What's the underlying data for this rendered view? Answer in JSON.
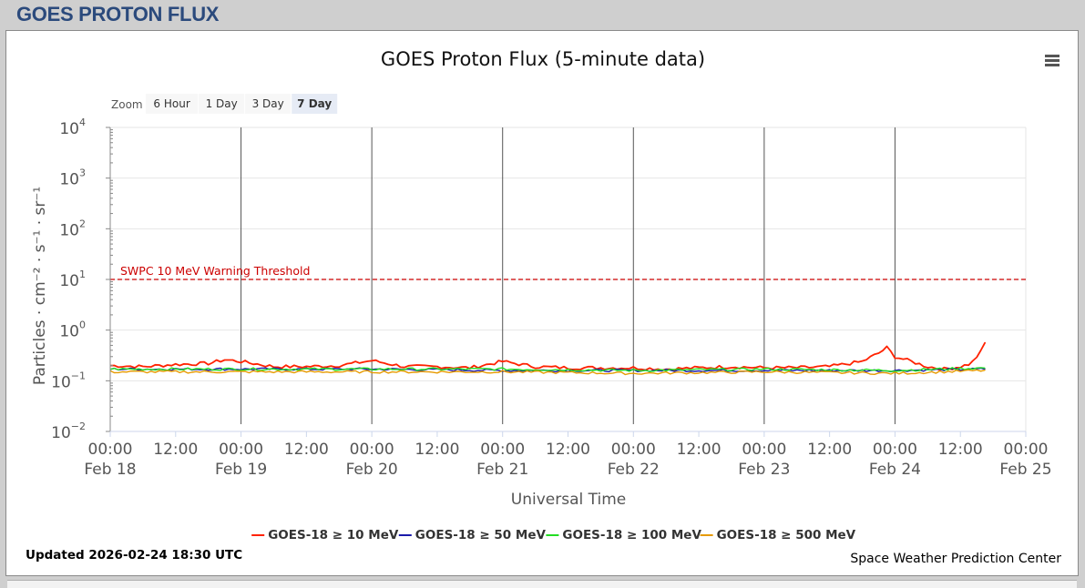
{
  "header": {
    "title": "GOES PROTON FLUX"
  },
  "zoom": {
    "label": "Zoom",
    "buttons": [
      {
        "label": "6 Hour",
        "active": false
      },
      {
        "label": "1 Day",
        "active": false
      },
      {
        "label": "3 Day",
        "active": false
      },
      {
        "label": "7 Day",
        "active": true
      }
    ]
  },
  "footer": {
    "updated": "Updated 2026-02-24 18:30 UTC",
    "credit": "Space Weather Prediction Center"
  },
  "chart_data": {
    "type": "line",
    "title": "GOES Proton Flux (5-minute data)",
    "xlabel": "Universal Time",
    "ylabel": "Particles · cm⁻² · s⁻¹ · sr⁻¹",
    "yscale": "log",
    "ylim": [
      0.01,
      10000
    ],
    "yticks": [
      {
        "value": 0.01,
        "base": "10",
        "exp": "−2"
      },
      {
        "value": 0.1,
        "base": "10",
        "exp": "−1"
      },
      {
        "value": 1,
        "base": "10",
        "exp": "0"
      },
      {
        "value": 10,
        "base": "10",
        "exp": "1"
      },
      {
        "value": 100,
        "base": "10",
        "exp": "2"
      },
      {
        "value": 1000,
        "base": "10",
        "exp": "3"
      },
      {
        "value": 10000,
        "base": "10",
        "exp": "4"
      }
    ],
    "xlim": [
      "2026-02-18 00:00",
      "2026-02-25 00:00"
    ],
    "xticks": [
      {
        "time": "2026-02-18 00:00",
        "line1": "00:00",
        "line2": "Feb 18"
      },
      {
        "time": "2026-02-18 12:00",
        "line1": "12:00",
        "line2": ""
      },
      {
        "time": "2026-02-19 00:00",
        "line1": "00:00",
        "line2": "Feb 19"
      },
      {
        "time": "2026-02-19 12:00",
        "line1": "12:00",
        "line2": ""
      },
      {
        "time": "2026-02-20 00:00",
        "line1": "00:00",
        "line2": "Feb 20"
      },
      {
        "time": "2026-02-20 12:00",
        "line1": "12:00",
        "line2": ""
      },
      {
        "time": "2026-02-21 00:00",
        "line1": "00:00",
        "line2": "Feb 21"
      },
      {
        "time": "2026-02-21 12:00",
        "line1": "12:00",
        "line2": ""
      },
      {
        "time": "2026-02-22 00:00",
        "line1": "00:00",
        "line2": "Feb 22"
      },
      {
        "time": "2026-02-22 12:00",
        "line1": "12:00",
        "line2": ""
      },
      {
        "time": "2026-02-23 00:00",
        "line1": "00:00",
        "line2": "Feb 23"
      },
      {
        "time": "2026-02-23 12:00",
        "line1": "12:00",
        "line2": ""
      },
      {
        "time": "2026-02-24 00:00",
        "line1": "00:00",
        "line2": "Feb 24"
      },
      {
        "time": "2026-02-24 12:00",
        "line1": "12:00",
        "line2": ""
      },
      {
        "time": "2026-02-25 00:00",
        "line1": "00:00",
        "line2": "Feb 25"
      }
    ],
    "day_boundaries": [
      "2026-02-19 00:00",
      "2026-02-20 00:00",
      "2026-02-21 00:00",
      "2026-02-22 00:00",
      "2026-02-23 00:00",
      "2026-02-24 00:00"
    ],
    "threshold": {
      "label": "SWPC 10 MeV Warning Threshold",
      "value": 10,
      "color": "#cc0000"
    },
    "legend_position": "bottom-center",
    "series": [
      {
        "name": "GOES-18 ≥ 10 MeV",
        "color": "#ff2200",
        "points": [
          [
            "2026-02-18 00:00",
            0.2
          ],
          [
            "2026-02-18 06:00",
            0.19
          ],
          [
            "2026-02-18 12:00",
            0.21
          ],
          [
            "2026-02-18 18:00",
            0.22
          ],
          [
            "2026-02-18 21:00",
            0.26
          ],
          [
            "2026-02-19 00:00",
            0.24
          ],
          [
            "2026-02-19 06:00",
            0.19
          ],
          [
            "2026-02-19 12:00",
            0.19
          ],
          [
            "2026-02-19 18:00",
            0.2
          ],
          [
            "2026-02-20 00:00",
            0.25
          ],
          [
            "2026-02-20 06:00",
            0.19
          ],
          [
            "2026-02-20 12:00",
            0.19
          ],
          [
            "2026-02-20 18:00",
            0.18
          ],
          [
            "2026-02-21 00:00",
            0.24
          ],
          [
            "2026-02-21 06:00",
            0.19
          ],
          [
            "2026-02-21 12:00",
            0.18
          ],
          [
            "2026-02-21 18:00",
            0.18
          ],
          [
            "2026-02-22 00:00",
            0.18
          ],
          [
            "2026-02-22 06:00",
            0.17
          ],
          [
            "2026-02-22 12:00",
            0.18
          ],
          [
            "2026-02-22 18:00",
            0.19
          ],
          [
            "2026-02-23 00:00",
            0.18
          ],
          [
            "2026-02-23 06:00",
            0.18
          ],
          [
            "2026-02-23 12:00",
            0.19
          ],
          [
            "2026-02-23 18:00",
            0.24
          ],
          [
            "2026-02-23 21:00",
            0.35
          ],
          [
            "2026-02-23 22:30",
            0.45
          ],
          [
            "2026-02-24 00:00",
            0.3
          ],
          [
            "2026-02-24 03:00",
            0.24
          ],
          [
            "2026-02-24 06:00",
            0.19
          ],
          [
            "2026-02-24 09:00",
            0.17
          ],
          [
            "2026-02-24 12:00",
            0.19
          ],
          [
            "2026-02-24 14:00",
            0.22
          ],
          [
            "2026-02-24 15:00",
            0.3
          ],
          [
            "2026-02-24 16:00",
            0.4
          ],
          [
            "2026-02-24 16:30",
            0.55
          ]
        ]
      },
      {
        "name": "GOES-18 ≥ 50 MeV",
        "color": "#1a1aaa",
        "points": [
          [
            "2026-02-18 00:00",
            0.17
          ],
          [
            "2026-02-19 00:00",
            0.17
          ],
          [
            "2026-02-20 00:00",
            0.17
          ],
          [
            "2026-02-21 00:00",
            0.16
          ],
          [
            "2026-02-22 00:00",
            0.16
          ],
          [
            "2026-02-23 00:00",
            0.16
          ],
          [
            "2026-02-24 00:00",
            0.16
          ],
          [
            "2026-02-24 16:30",
            0.17
          ]
        ]
      },
      {
        "name": "GOES-18 ≥ 100 MeV",
        "color": "#22dd22",
        "points": [
          [
            "2026-02-18 00:00",
            0.17
          ],
          [
            "2026-02-19 00:00",
            0.17
          ],
          [
            "2026-02-20 00:00",
            0.17
          ],
          [
            "2026-02-21 00:00",
            0.17
          ],
          [
            "2026-02-22 00:00",
            0.16
          ],
          [
            "2026-02-23 00:00",
            0.17
          ],
          [
            "2026-02-24 00:00",
            0.16
          ],
          [
            "2026-02-24 16:30",
            0.18
          ]
        ]
      },
      {
        "name": "GOES-18 ≥ 500 MeV",
        "color": "#e69a00",
        "points": [
          [
            "2026-02-18 00:00",
            0.15
          ],
          [
            "2026-02-19 00:00",
            0.15
          ],
          [
            "2026-02-20 00:00",
            0.15
          ],
          [
            "2026-02-21 00:00",
            0.15
          ],
          [
            "2026-02-22 00:00",
            0.14
          ],
          [
            "2026-02-23 00:00",
            0.15
          ],
          [
            "2026-02-24 00:00",
            0.14
          ],
          [
            "2026-02-24 16:30",
            0.16
          ]
        ]
      }
    ]
  }
}
